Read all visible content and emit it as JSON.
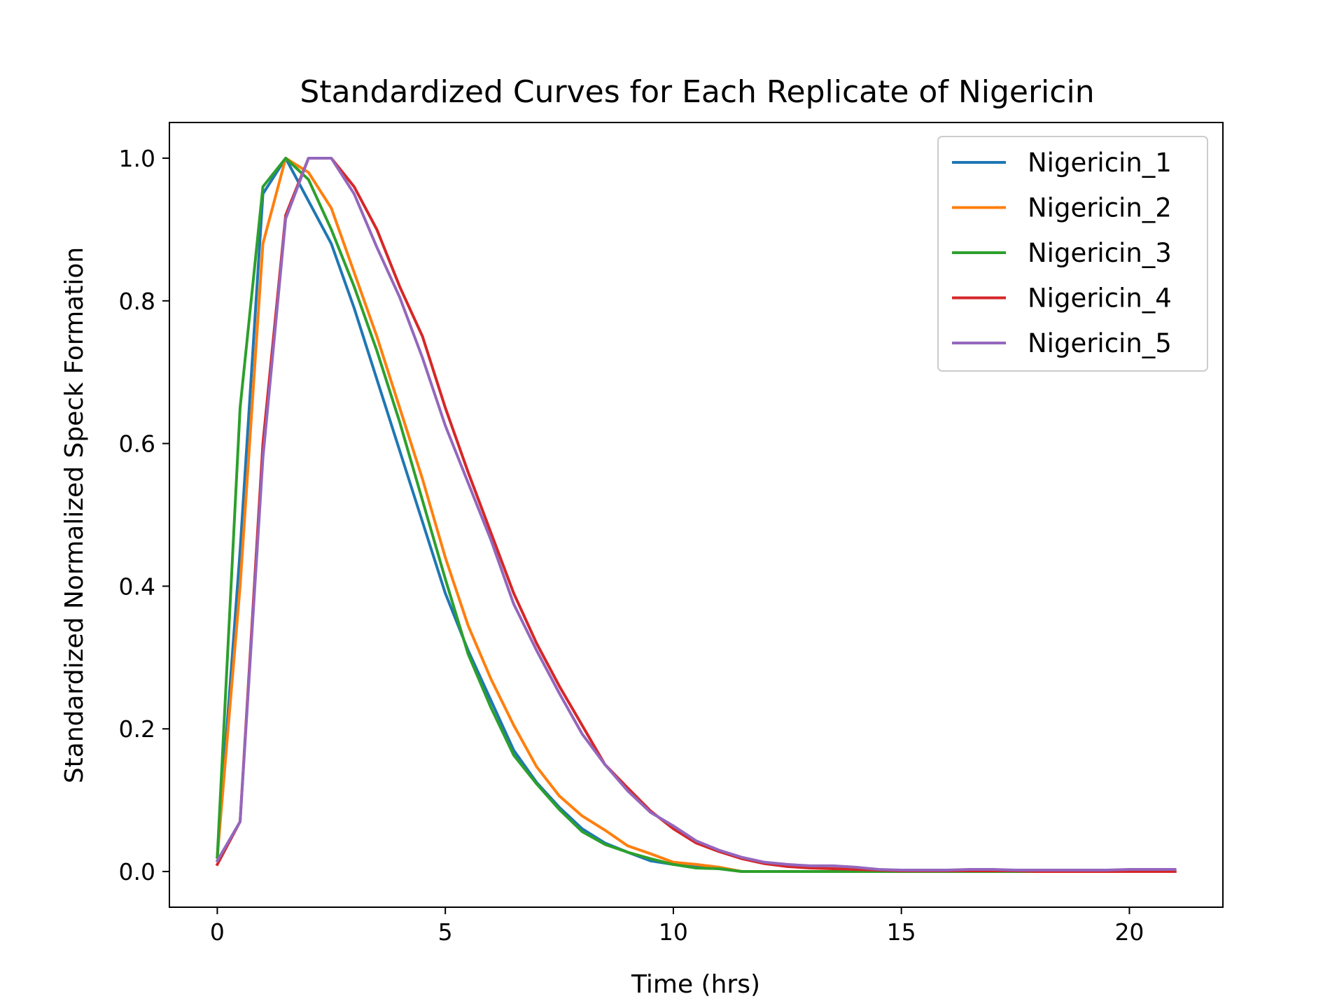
{
  "chart_data": {
    "type": "line",
    "title": "Standardized Curves for Each Replicate of Nigericin",
    "xlabel": "Time (hrs)",
    "ylabel": "Standardized Normalized Speck Formation",
    "xlim": [
      -1.05,
      22.05
    ],
    "ylim": [
      -0.05,
      1.05
    ],
    "xticks": [
      0,
      5,
      10,
      15,
      20
    ],
    "yticks": [
      0.0,
      0.2,
      0.4,
      0.6,
      0.8,
      1.0
    ],
    "xtick_labels": [
      "0",
      "5",
      "10",
      "15",
      "20"
    ],
    "ytick_labels": [
      "0.0",
      "0.2",
      "0.4",
      "0.6",
      "0.8",
      "1.0"
    ],
    "grid": false,
    "legend_position": "top-right",
    "x": [
      0,
      0.5,
      1,
      1.5,
      2,
      2.5,
      3,
      3.5,
      4,
      4.5,
      5,
      5.5,
      6,
      6.5,
      7,
      7.5,
      8,
      8.5,
      9,
      9.5,
      10,
      10.5,
      11,
      11.5,
      12,
      12.5,
      13,
      13.5,
      14,
      14.5,
      15,
      15.5,
      16,
      16.5,
      17,
      17.5,
      18,
      18.5,
      19,
      19.5,
      20,
      20.5,
      21
    ],
    "series": [
      {
        "name": "Nigericin_1",
        "color": "#1f77b4",
        "values": [
          0.02,
          0.45,
          0.95,
          1.0,
          0.94,
          0.88,
          0.79,
          0.69,
          0.59,
          0.49,
          0.39,
          0.31,
          0.24,
          0.17,
          0.125,
          0.09,
          0.06,
          0.04,
          0.027,
          0.015,
          0.01,
          0.006,
          0.004,
          0.0,
          0.0,
          0.0,
          0.0,
          0.0,
          0.0,
          0.0,
          0.0,
          0.0,
          0.0,
          0.0,
          0.0,
          0.0,
          0.0,
          0.0,
          0.0,
          0.0,
          0.0,
          0.0,
          0.0
        ]
      },
      {
        "name": "Nigericin_2",
        "color": "#ff7f0e",
        "values": [
          0.02,
          0.4,
          0.88,
          1.0,
          0.98,
          0.93,
          0.84,
          0.75,
          0.65,
          0.55,
          0.44,
          0.345,
          0.27,
          0.205,
          0.147,
          0.106,
          0.078,
          0.058,
          0.036,
          0.025,
          0.013,
          0.01,
          0.006,
          0.0,
          0.0,
          0.0,
          0.0,
          0.0,
          0.0,
          0.0,
          0.0,
          0.0,
          0.0,
          0.0,
          0.0,
          0.0,
          0.0,
          0.0,
          0.0,
          0.0,
          0.0,
          0.0,
          0.0
        ]
      },
      {
        "name": "Nigericin_3",
        "color": "#2ca02c",
        "values": [
          0.02,
          0.65,
          0.96,
          1.0,
          0.97,
          0.9,
          0.82,
          0.73,
          0.63,
          0.52,
          0.41,
          0.305,
          0.23,
          0.163,
          0.123,
          0.087,
          0.056,
          0.038,
          0.027,
          0.018,
          0.01,
          0.005,
          0.004,
          0.0,
          0.0,
          0.0,
          0.0,
          0.0,
          0.0,
          0.0,
          0.0,
          0.0,
          0.0,
          0.0,
          0.0,
          0.0,
          0.0,
          0.0,
          0.0,
          0.0,
          0.0,
          0.0,
          0.0
        ]
      },
      {
        "name": "Nigericin_4",
        "color": "#d62728",
        "values": [
          0.01,
          0.07,
          0.6,
          0.92,
          1.0,
          1.0,
          0.96,
          0.9,
          0.82,
          0.75,
          0.65,
          0.56,
          0.475,
          0.39,
          0.32,
          0.26,
          0.205,
          0.15,
          0.117,
          0.085,
          0.06,
          0.04,
          0.028,
          0.018,
          0.011,
          0.007,
          0.005,
          0.004,
          0.003,
          0.002,
          0.001,
          0.001,
          0.001,
          0.001,
          0.001,
          0.001,
          0.0,
          0.0,
          0.0,
          0.0,
          0.0,
          0.0,
          0.0
        ]
      },
      {
        "name": "Nigericin_5",
        "color": "#9467bd",
        "values": [
          0.015,
          0.07,
          0.58,
          0.915,
          1.0,
          1.0,
          0.95,
          0.875,
          0.805,
          0.72,
          0.625,
          0.545,
          0.465,
          0.375,
          0.31,
          0.25,
          0.193,
          0.15,
          0.113,
          0.083,
          0.064,
          0.043,
          0.03,
          0.02,
          0.013,
          0.01,
          0.008,
          0.008,
          0.006,
          0.003,
          0.002,
          0.002,
          0.002,
          0.003,
          0.003,
          0.002,
          0.002,
          0.002,
          0.002,
          0.002,
          0.003,
          0.003,
          0.003
        ]
      }
    ]
  }
}
